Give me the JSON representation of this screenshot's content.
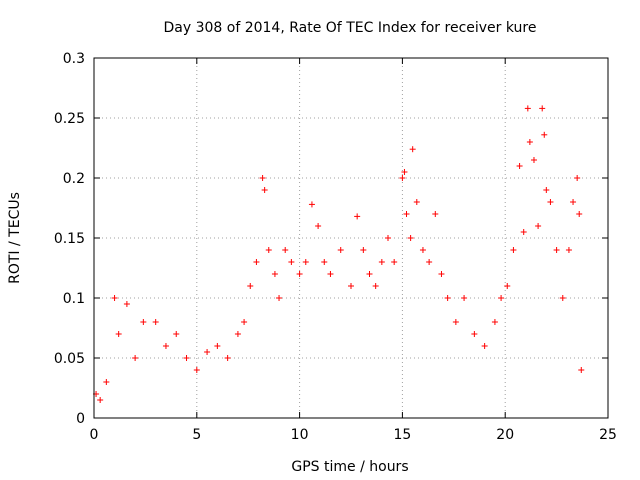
{
  "chart_data": {
    "type": "scatter",
    "title": "Day 308 of 2014, Rate Of TEC Index for receiver kure",
    "xlabel": "GPS time / hours",
    "ylabel": "ROTI / TECUs",
    "xlim": [
      0,
      25
    ],
    "ylim": [
      0,
      0.3
    ],
    "xticks": [
      0,
      5,
      10,
      15,
      20,
      25
    ],
    "yticks": [
      0,
      0.05,
      0.1,
      0.15,
      0.2,
      0.25,
      0.3
    ],
    "xtick_labels": [
      "0",
      "5",
      "10",
      "15",
      "20",
      "25"
    ],
    "ytick_labels": [
      "0",
      "0.05",
      "0.1",
      "0.15",
      "0.2",
      "0.25",
      "0.3"
    ],
    "grid": true,
    "marker": "plus",
    "color": "#ff0000",
    "points": [
      [
        0.1,
        0.02
      ],
      [
        0.3,
        0.015
      ],
      [
        0.6,
        0.03
      ],
      [
        1.0,
        0.1
      ],
      [
        1.2,
        0.07
      ],
      [
        1.6,
        0.095
      ],
      [
        2.0,
        0.05
      ],
      [
        2.4,
        0.08
      ],
      [
        3.0,
        0.08
      ],
      [
        3.5,
        0.06
      ],
      [
        4.0,
        0.07
      ],
      [
        4.5,
        0.05
      ],
      [
        5.0,
        0.04
      ],
      [
        5.5,
        0.055
      ],
      [
        6.0,
        0.06
      ],
      [
        6.5,
        0.05
      ],
      [
        7.0,
        0.07
      ],
      [
        7.3,
        0.08
      ],
      [
        7.6,
        0.11
      ],
      [
        7.9,
        0.13
      ],
      [
        8.2,
        0.2
      ],
      [
        8.3,
        0.19
      ],
      [
        8.5,
        0.14
      ],
      [
        8.8,
        0.12
      ],
      [
        9.0,
        0.1
      ],
      [
        9.3,
        0.14
      ],
      [
        9.6,
        0.13
      ],
      [
        10.0,
        0.12
      ],
      [
        10.3,
        0.13
      ],
      [
        10.6,
        0.178
      ],
      [
        10.9,
        0.16
      ],
      [
        11.2,
        0.13
      ],
      [
        11.5,
        0.12
      ],
      [
        12.0,
        0.14
      ],
      [
        12.5,
        0.11
      ],
      [
        12.8,
        0.168
      ],
      [
        13.1,
        0.14
      ],
      [
        13.4,
        0.12
      ],
      [
        13.7,
        0.11
      ],
      [
        14.0,
        0.13
      ],
      [
        14.3,
        0.15
      ],
      [
        14.6,
        0.13
      ],
      [
        15.0,
        0.2
      ],
      [
        15.1,
        0.205
      ],
      [
        15.2,
        0.17
      ],
      [
        15.4,
        0.15
      ],
      [
        15.5,
        0.224
      ],
      [
        15.7,
        0.18
      ],
      [
        16.0,
        0.14
      ],
      [
        16.3,
        0.13
      ],
      [
        16.6,
        0.17
      ],
      [
        16.9,
        0.12
      ],
      [
        17.2,
        0.1
      ],
      [
        17.6,
        0.08
      ],
      [
        18.0,
        0.1
      ],
      [
        18.5,
        0.07
      ],
      [
        19.0,
        0.06
      ],
      [
        19.5,
        0.08
      ],
      [
        19.8,
        0.1
      ],
      [
        20.1,
        0.11
      ],
      [
        20.4,
        0.14
      ],
      [
        20.7,
        0.21
      ],
      [
        20.9,
        0.155
      ],
      [
        21.1,
        0.258
      ],
      [
        21.2,
        0.23
      ],
      [
        21.4,
        0.215
      ],
      [
        21.6,
        0.16
      ],
      [
        21.8,
        0.258
      ],
      [
        21.9,
        0.236
      ],
      [
        22.0,
        0.19
      ],
      [
        22.2,
        0.18
      ],
      [
        22.5,
        0.14
      ],
      [
        22.8,
        0.1
      ],
      [
        23.1,
        0.14
      ],
      [
        23.3,
        0.18
      ],
      [
        23.5,
        0.2
      ],
      [
        23.6,
        0.17
      ],
      [
        23.7,
        0.04
      ]
    ]
  }
}
